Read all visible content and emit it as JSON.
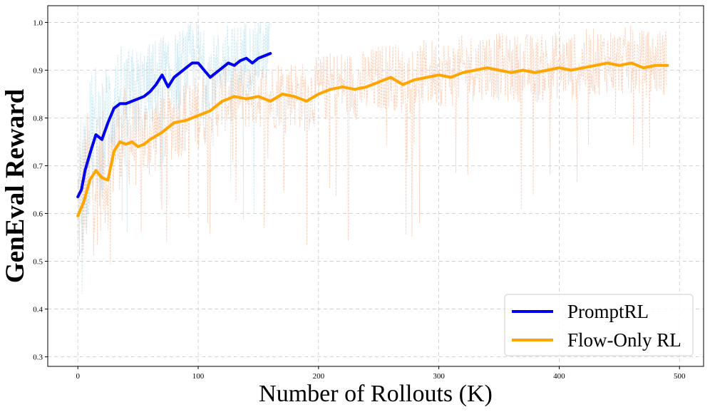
{
  "chart_data": {
    "type": "line",
    "title": "",
    "xlabel": "Number of Rollouts (K)",
    "ylabel": "GenEval Reward",
    "xlim": [
      -25,
      520
    ],
    "ylim": [
      0.28,
      1.035
    ],
    "x_ticks": [
      "0",
      "100",
      "200",
      "300",
      "400",
      "500"
    ],
    "y_ticks": [
      "0.3",
      "0.4",
      "0.5",
      "0.6",
      "0.7",
      "0.8",
      "0.9",
      "1.0"
    ],
    "grid": true,
    "legend_position": "lower-right",
    "series": [
      {
        "name": "PromptRL",
        "color": "#0000ee",
        "raw_color": "#a8d8ea",
        "x": [
          0,
          3,
          6,
          10,
          15,
          20,
          25,
          30,
          35,
          40,
          45,
          50,
          55,
          60,
          65,
          70,
          75,
          80,
          85,
          90,
          95,
          100,
          105,
          110,
          115,
          120,
          125,
          130,
          135,
          140,
          145,
          150,
          155,
          160
        ],
        "y": [
          0.635,
          0.65,
          0.69,
          0.725,
          0.765,
          0.755,
          0.79,
          0.82,
          0.83,
          0.83,
          0.835,
          0.84,
          0.845,
          0.855,
          0.87,
          0.89,
          0.865,
          0.885,
          0.895,
          0.905,
          0.915,
          0.915,
          0.9,
          0.885,
          0.895,
          0.905,
          0.915,
          0.91,
          0.92,
          0.925,
          0.915,
          0.925,
          0.93,
          0.935
        ]
      },
      {
        "name": "Flow-Only RL",
        "color": "#ffa500",
        "raw_color": "#fbbf9f",
        "x": [
          0,
          5,
          10,
          15,
          20,
          25,
          30,
          35,
          40,
          45,
          50,
          55,
          60,
          70,
          80,
          90,
          100,
          110,
          120,
          130,
          140,
          150,
          160,
          170,
          180,
          190,
          200,
          210,
          220,
          230,
          240,
          250,
          260,
          270,
          280,
          290,
          300,
          310,
          320,
          330,
          340,
          350,
          360,
          370,
          380,
          390,
          400,
          410,
          420,
          430,
          440,
          450,
          460,
          470,
          480,
          490
        ],
        "y": [
          0.595,
          0.625,
          0.67,
          0.69,
          0.675,
          0.67,
          0.73,
          0.75,
          0.745,
          0.75,
          0.74,
          0.745,
          0.755,
          0.77,
          0.79,
          0.795,
          0.805,
          0.815,
          0.835,
          0.845,
          0.84,
          0.845,
          0.835,
          0.85,
          0.845,
          0.835,
          0.85,
          0.86,
          0.865,
          0.86,
          0.865,
          0.875,
          0.885,
          0.87,
          0.88,
          0.885,
          0.89,
          0.885,
          0.895,
          0.9,
          0.905,
          0.9,
          0.895,
          0.9,
          0.895,
          0.9,
          0.905,
          0.9,
          0.905,
          0.91,
          0.915,
          0.91,
          0.915,
          0.905,
          0.91,
          0.91
        ]
      }
    ]
  }
}
